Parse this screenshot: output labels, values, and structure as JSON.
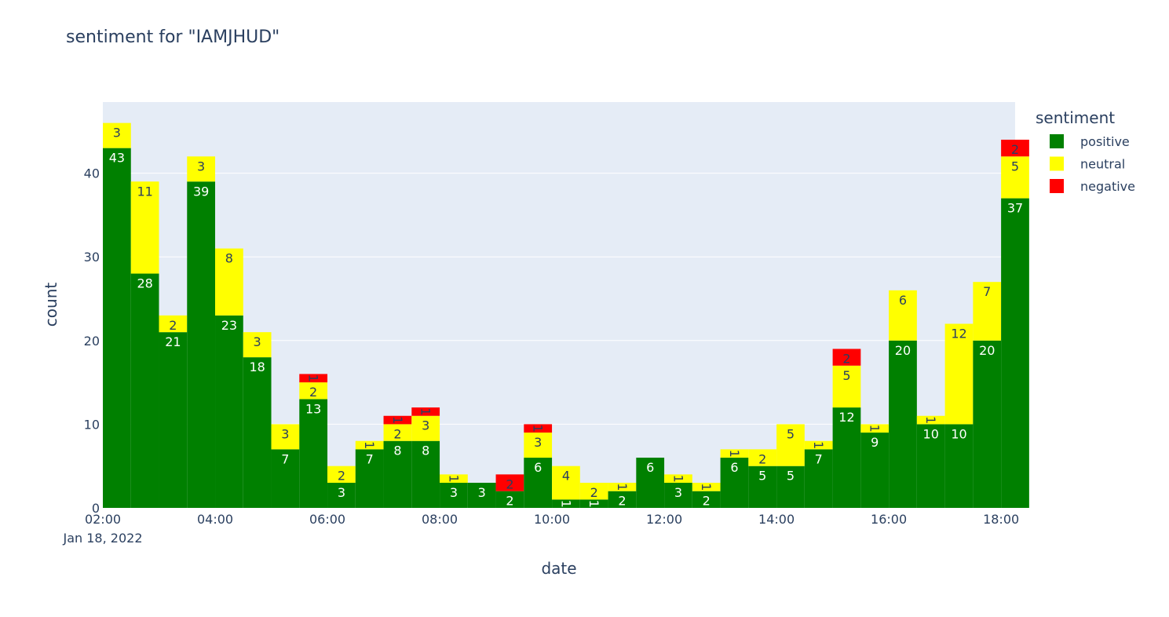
{
  "chart_data": {
    "type": "bar",
    "barmode": "stack",
    "title": "sentiment for \"IAMJHUD\"",
    "xlabel": "date",
    "ylabel": "count",
    "ylim": [
      0,
      48.5
    ],
    "xlim": [
      "2022-01-18 02:00",
      "2022-01-18 18:15"
    ],
    "bin_minutes": 30,
    "x": [
      "2022-01-18 02:15",
      "2022-01-18 02:45",
      "2022-01-18 03:15",
      "2022-01-18 03:45",
      "2022-01-18 04:15",
      "2022-01-18 04:45",
      "2022-01-18 05:15",
      "2022-01-18 05:45",
      "2022-01-18 06:15",
      "2022-01-18 06:45",
      "2022-01-18 07:15",
      "2022-01-18 07:45",
      "2022-01-18 08:15",
      "2022-01-18 08:45",
      "2022-01-18 09:15",
      "2022-01-18 09:45",
      "2022-01-18 10:15",
      "2022-01-18 10:45",
      "2022-01-18 11:15",
      "2022-01-18 11:45",
      "2022-01-18 12:15",
      "2022-01-18 12:45",
      "2022-01-18 13:15",
      "2022-01-18 13:45",
      "2022-01-18 14:15",
      "2022-01-18 14:45",
      "2022-01-18 15:15",
      "2022-01-18 15:45",
      "2022-01-18 16:15",
      "2022-01-18 16:45",
      "2022-01-18 17:15",
      "2022-01-18 17:45",
      "2022-01-18 18:15"
    ],
    "series": [
      {
        "name": "positive",
        "color": "#008000",
        "values": [
          43,
          28,
          21,
          39,
          23,
          18,
          7,
          13,
          3,
          7,
          8,
          8,
          3,
          3,
          2,
          6,
          1,
          1,
          2,
          6,
          3,
          2,
          6,
          5,
          5,
          7,
          12,
          9,
          20,
          10,
          10,
          20,
          37
        ]
      },
      {
        "name": "neutral",
        "color": "#ffff00",
        "values": [
          3,
          11,
          2,
          3,
          8,
          3,
          3,
          2,
          2,
          1,
          2,
          3,
          1,
          null,
          null,
          3,
          4,
          2,
          1,
          null,
          1,
          1,
          1,
          2,
          5,
          1,
          5,
          1,
          6,
          1,
          12,
          7,
          5
        ]
      },
      {
        "name": "negative",
        "color": "#ff0000",
        "values": [
          null,
          null,
          null,
          null,
          null,
          null,
          null,
          1,
          null,
          null,
          1,
          1,
          null,
          null,
          2,
          1,
          null,
          null,
          null,
          null,
          null,
          null,
          null,
          null,
          null,
          null,
          2,
          null,
          null,
          null,
          null,
          null,
          2
        ]
      }
    ],
    "y_ticks": [
      0,
      10,
      20,
      30,
      40
    ],
    "x_ticks": [
      "2022-01-18 02:00",
      "2022-01-18 04:00",
      "2022-01-18 06:00",
      "2022-01-18 08:00",
      "2022-01-18 10:00",
      "2022-01-18 12:00",
      "2022-01-18 14:00",
      "2022-01-18 16:00",
      "2022-01-18 18:00"
    ],
    "x_tick_labels": [
      "02:00",
      "04:00",
      "06:00",
      "08:00",
      "10:00",
      "12:00",
      "14:00",
      "16:00",
      "18:00"
    ],
    "x_subtitle": "Jan 18, 2022",
    "legend_title": "sentiment",
    "legend_position": "right",
    "grid": true,
    "plot_bgcolor": "#e5ecf6"
  }
}
